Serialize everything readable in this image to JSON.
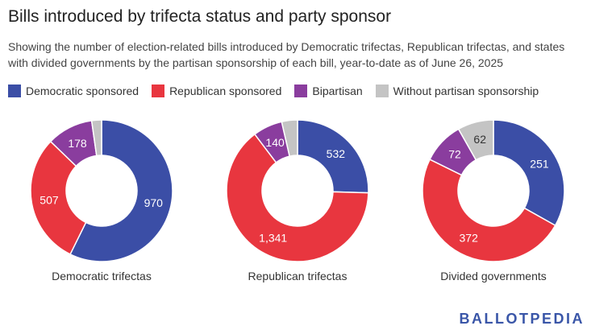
{
  "header": {
    "title": "Bills introduced by trifecta status and party sponsor",
    "subtitle": "Showing the number of election-related bills introduced by Democratic trifectas, Republican trifectas, and states with divided governments by the partisan sponsorship of each bill, year-to-date as of June 26, 2025"
  },
  "legend": [
    {
      "label": "Democratic sponsored",
      "color": "#3b4ea6"
    },
    {
      "label": "Republican sponsored",
      "color": "#e8363f"
    },
    {
      "label": "Bipartisan",
      "color": "#8a3d9e"
    },
    {
      "label": "Without partisan sponsorship",
      "color": "#c4c4c4"
    }
  ],
  "chart_data": [
    {
      "type": "pie",
      "label": "Democratic trifectas",
      "categories": [
        "Democratic sponsored",
        "Republican sponsored",
        "Bipartisan",
        "Without partisan sponsorship"
      ],
      "values": [
        970,
        507,
        178,
        38
      ],
      "data_labels": [
        "970",
        "507",
        "178",
        ""
      ]
    },
    {
      "type": "pie",
      "label": "Republican trifectas",
      "categories": [
        "Democratic sponsored",
        "Republican sponsored",
        "Bipartisan",
        "Without partisan sponsorship"
      ],
      "values": [
        532,
        1341,
        140,
        75
      ],
      "data_labels": [
        "532",
        "1,341",
        "140",
        ""
      ]
    },
    {
      "type": "pie",
      "label": "Divided governments",
      "categories": [
        "Democratic sponsored",
        "Republican sponsored",
        "Bipartisan",
        "Without partisan sponsorship"
      ],
      "values": [
        251,
        372,
        72,
        62
      ],
      "data_labels": [
        "251",
        "372",
        "72",
        "62"
      ]
    }
  ],
  "logo": "BALLOTPEDIA"
}
